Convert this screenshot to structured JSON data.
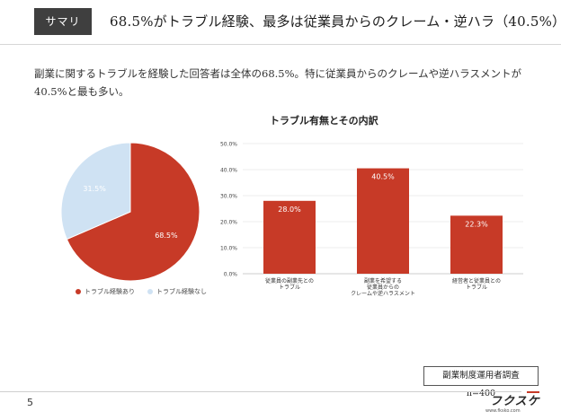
{
  "header": {
    "tag": "サマリ",
    "title": "68.5%がトラブル経験、最多は従業員からのクレーム・逆ハラ（40.5%）"
  },
  "summary": "副業に関するトラブルを経験した回答者は全体の68.5%。特に従業員からのクレームや逆ハラスメントが40.5%と最も多い。",
  "chart_data": [
    {
      "type": "pie",
      "labels": [
        "トラブル経験あり",
        "トラブル経験なし"
      ],
      "values": [
        68.5,
        31.5
      ],
      "data_labels": [
        "68.5%",
        "31.5%"
      ],
      "colors": [
        "#c73a27",
        "#cfe2f3"
      ],
      "legend": "bottom"
    },
    {
      "type": "bar",
      "title": "トラブル有無とその内訳",
      "categories": [
        [
          "従業員の副業先との",
          "トラブル"
        ],
        [
          "副業を希望する",
          "従業員からの",
          "クレームや逆ハラスメント"
        ],
        [
          "経営者と従業員との",
          "トラブル"
        ]
      ],
      "values": [
        28.0,
        40.5,
        22.3
      ],
      "data_labels": [
        "28.0%",
        "40.5%",
        "22.3%"
      ],
      "y_ticks": [
        "0.0%",
        "10.0%",
        "20.0%",
        "30.0%",
        "40.0%",
        "50.0%"
      ],
      "ylim": [
        0,
        50
      ],
      "color": "#c73a27",
      "grid": true
    }
  ],
  "note": "副業制度運用者調査　n=400",
  "footer": {
    "page": "5",
    "logo": "フクスケ",
    "url": "www.fksko.com"
  },
  "colors": {
    "accent": "#c73a27",
    "pie_light": "#cfe2f3",
    "tag_bg": "#3f3f3f"
  }
}
